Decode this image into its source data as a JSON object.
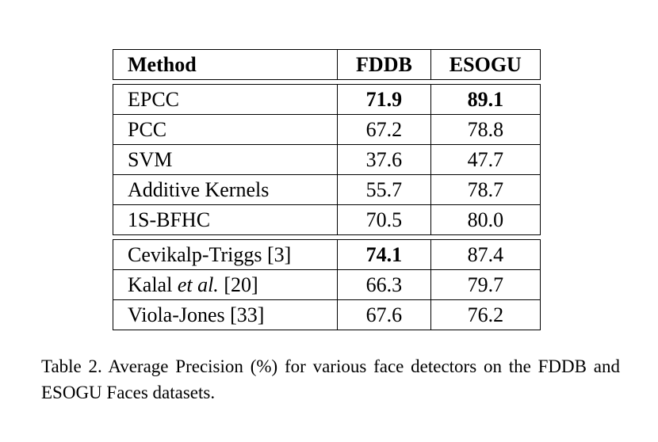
{
  "table": {
    "headers": [
      "Method",
      "FDDB",
      "ESOGU"
    ],
    "group1": [
      {
        "method": "EPCC",
        "fddb": "71.9",
        "esogu": "89.1",
        "fddb_bold": true,
        "esogu_bold": true
      },
      {
        "method": "PCC",
        "fddb": "67.2",
        "esogu": "78.8"
      },
      {
        "method": "SVM",
        "fddb": "37.6",
        "esogu": "47.7"
      },
      {
        "method": "Additive Kernels",
        "fddb": "55.7",
        "esogu": "78.7"
      },
      {
        "method": "1S-BFHC",
        "fddb": "70.5",
        "esogu": "80.0"
      }
    ],
    "group2": [
      {
        "method": "Cevikalp-Triggs [3]",
        "fddb": "74.1",
        "esogu": "87.4",
        "fddb_bold": true
      },
      {
        "method_prefix": "Kalal ",
        "method_italic": "et al.",
        "method_suffix": " [20]",
        "fddb": "66.3",
        "esogu": "79.7"
      },
      {
        "method": "Viola-Jones [33]",
        "fddb": "67.6",
        "esogu": "76.2"
      }
    ]
  },
  "caption": "Table 2. Average Precision (%) for various face detectors on the FDDB and ESOGU Faces datasets."
}
